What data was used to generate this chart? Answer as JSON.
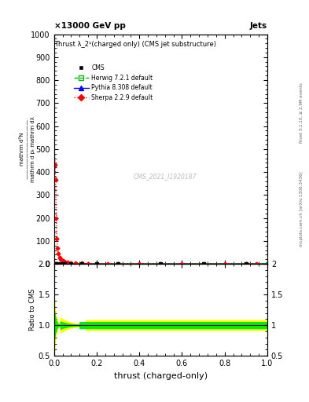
{
  "title": "Thrust λ_2¹(charged only) (CMS jet substructure)",
  "header_left": "×13000 GeV pp",
  "header_right": "Jets",
  "watermark": "CMS_2021_I1920187",
  "right_label_top": "Rivet 3.1.10, ≥ 2.9M events",
  "right_label_bottom": "mcplots.cern.ch [arXiv:1306.3436]",
  "xlabel": "thrust (charged-only)",
  "ylabel_main_line1": "mathrm d²N",
  "ylabel_main_line2": "mathrm d pₜ mathrm d mathrm d lambda",
  "ylabel_ratio": "Ratio to CMS",
  "ylim_main": [
    0,
    1000
  ],
  "ylim_ratio": [
    0.5,
    2.0
  ],
  "xlim": [
    0.0,
    1.0
  ],
  "ytick_main": [
    0,
    100,
    200,
    300,
    400,
    500,
    600,
    700,
    800,
    900,
    1000
  ],
  "ratio_yticks": [
    0.5,
    1.0,
    1.5,
    2.0
  ],
  "sherpa_x": [
    0.005,
    0.008,
    0.01,
    0.013,
    0.016,
    0.02,
    0.025,
    0.03,
    0.04,
    0.05,
    0.065,
    0.08,
    0.1,
    0.13,
    0.16,
    0.2,
    0.25,
    0.3,
    0.4,
    0.5,
    0.6,
    0.7,
    0.8,
    0.9,
    0.95
  ],
  "sherpa_y": [
    430,
    365,
    200,
    110,
    70,
    45,
    28,
    20,
    13,
    9,
    6,
    4.5,
    3.5,
    2.5,
    2.0,
    1.8,
    1.5,
    1.2,
    1.0,
    0.9,
    0.9,
    0.9,
    0.9,
    0.9,
    0.9
  ],
  "cms_x": [
    0.005,
    0.01,
    0.02,
    0.03,
    0.05,
    0.08,
    0.13,
    0.2,
    0.3,
    0.5,
    0.7,
    0.9
  ],
  "cms_y": [
    2.0,
    1.8,
    1.5,
    1.2,
    1.0,
    0.9,
    0.9,
    0.8,
    0.8,
    0.8,
    0.8,
    0.8
  ],
  "herwig_x": [
    0.005,
    0.01,
    0.02,
    0.03,
    0.05,
    0.08,
    0.13,
    0.2,
    0.3,
    0.5,
    0.7,
    0.9,
    1.0
  ],
  "herwig_y": [
    1.8,
    1.7,
    1.4,
    1.1,
    1.0,
    0.9,
    0.9,
    0.8,
    0.8,
    0.8,
    0.8,
    0.8,
    0.8
  ],
  "pythia_x": [
    0.005,
    0.01,
    0.02,
    0.03,
    0.05,
    0.08,
    0.13,
    0.2,
    0.3,
    0.5,
    0.7,
    0.9,
    1.0
  ],
  "pythia_y": [
    1.9,
    1.8,
    1.5,
    1.2,
    1.0,
    0.9,
    0.9,
    0.8,
    0.8,
    0.8,
    0.8,
    0.8,
    0.8
  ],
  "cms_color": "#000000",
  "herwig_color": "#00bb00",
  "pythia_color": "#0000ff",
  "sherpa_color": "#ff0000",
  "ratio_yellow_color": "#ffff00",
  "ratio_green_color": "#00ee00",
  "background_color": "#ffffff"
}
